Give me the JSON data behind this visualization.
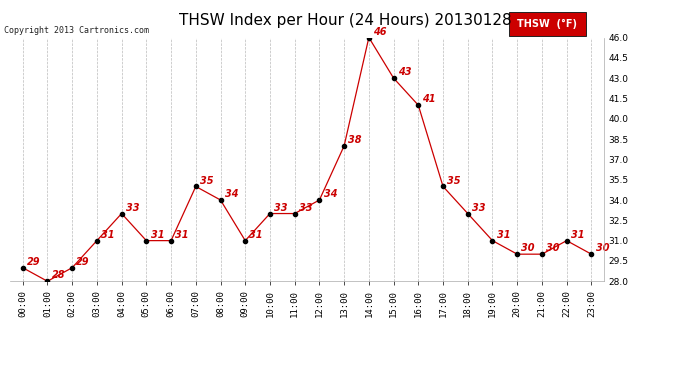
{
  "title": "THSW Index per Hour (24 Hours) 20130128",
  "copyright_text": "Copyright 2013 Cartronics.com",
  "legend_label": "THSW  (°F)",
  "hours": [
    "00:00",
    "01:00",
    "02:00",
    "03:00",
    "04:00",
    "05:00",
    "06:00",
    "07:00",
    "08:00",
    "09:00",
    "10:00",
    "11:00",
    "12:00",
    "13:00",
    "14:00",
    "15:00",
    "16:00",
    "17:00",
    "18:00",
    "19:00",
    "20:00",
    "21:00",
    "22:00",
    "23:00"
  ],
  "values": [
    29,
    28,
    29,
    31,
    33,
    31,
    31,
    35,
    34,
    31,
    33,
    33,
    34,
    38,
    46,
    43,
    41,
    35,
    33,
    31,
    30,
    30,
    31,
    30
  ],
  "ylim": [
    28.0,
    46.0
  ],
  "yticks": [
    28.0,
    29.5,
    31.0,
    32.5,
    34.0,
    35.5,
    37.0,
    38.5,
    40.0,
    41.5,
    43.0,
    44.5,
    46.0
  ],
  "line_color": "#cc0000",
  "marker_color": "#000000",
  "label_color": "#cc0000",
  "background_color": "#ffffff",
  "grid_color": "#bbbbbb",
  "title_fontsize": 11,
  "annotation_fontsize": 7,
  "tick_fontsize": 6.5,
  "copyright_fontsize": 6,
  "legend_bg": "#cc0000",
  "legend_text_color": "#ffffff",
  "legend_fontsize": 7
}
